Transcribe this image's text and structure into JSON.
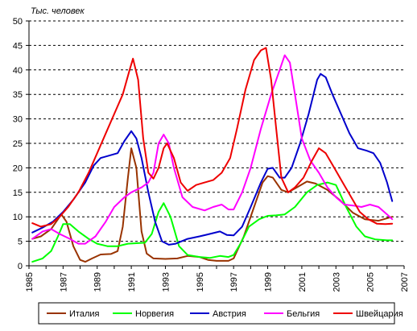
{
  "chart_data": {
    "type": "line",
    "unit_label": "Тыс. человек",
    "ylim": [
      0,
      50
    ],
    "xlim": [
      1985,
      2007
    ],
    "y_ticks": [
      "0",
      "5",
      "10",
      "15",
      "20",
      "25",
      "30",
      "35",
      "40",
      "45",
      "50"
    ],
    "x_ticks": [
      "1985",
      "1987",
      "1989",
      "1991",
      "1993",
      "1995",
      "1997",
      "1999",
      "2001",
      "2003",
      "2005",
      "2007"
    ],
    "grid": "horizontal dashed",
    "legend_position": "bottom",
    "series": [
      {
        "name": "Италия",
        "color": "#993300",
        "points": [
          [
            1985.2,
            5.5
          ],
          [
            1985.7,
            6.0
          ],
          [
            1986.3,
            7.5
          ],
          [
            1986.9,
            10.5
          ],
          [
            1987.2,
            9.0
          ],
          [
            1987.6,
            4.0
          ],
          [
            1988.0,
            1.2
          ],
          [
            1988.3,
            0.8
          ],
          [
            1988.7,
            1.5
          ],
          [
            1989.2,
            2.3
          ],
          [
            1989.8,
            2.4
          ],
          [
            1990.2,
            3.0
          ],
          [
            1990.5,
            8.0
          ],
          [
            1990.8,
            18.0
          ],
          [
            1991.0,
            24.0
          ],
          [
            1991.3,
            20.0
          ],
          [
            1991.6,
            7.0
          ],
          [
            1991.9,
            2.5
          ],
          [
            1992.3,
            1.5
          ],
          [
            1993.0,
            1.4
          ],
          [
            1993.7,
            1.5
          ],
          [
            1994.3,
            2.0
          ],
          [
            1995.0,
            1.8
          ],
          [
            1995.5,
            1.2
          ],
          [
            1996.0,
            1.0
          ],
          [
            1996.7,
            1.0
          ],
          [
            1997.0,
            1.5
          ],
          [
            1997.6,
            6.0
          ],
          [
            1998.2,
            12.0
          ],
          [
            1998.7,
            17.0
          ],
          [
            1999.0,
            18.3
          ],
          [
            1999.3,
            18.0
          ],
          [
            1999.8,
            15.5
          ],
          [
            2000.2,
            15.0
          ],
          [
            2000.7,
            16.0
          ],
          [
            2001.3,
            17.2
          ],
          [
            2001.8,
            16.8
          ],
          [
            2002.5,
            15.5
          ],
          [
            2003.2,
            13.5
          ],
          [
            2004.0,
            10.8
          ],
          [
            2004.7,
            9.5
          ],
          [
            2005.5,
            9.2
          ],
          [
            2006.3,
            10.0
          ]
        ]
      },
      {
        "name": "Норвегия",
        "color": "#00ff00",
        "points": [
          [
            1985.2,
            0.8
          ],
          [
            1985.8,
            1.5
          ],
          [
            1986.3,
            3.0
          ],
          [
            1986.7,
            6.0
          ],
          [
            1987.0,
            8.5
          ],
          [
            1987.4,
            8.5
          ],
          [
            1987.9,
            7.0
          ],
          [
            1988.5,
            5.5
          ],
          [
            1989.0,
            4.5
          ],
          [
            1989.6,
            4.0
          ],
          [
            1990.2,
            4.0
          ],
          [
            1990.8,
            4.5
          ],
          [
            1991.3,
            4.6
          ],
          [
            1991.8,
            4.7
          ],
          [
            1992.2,
            6.5
          ],
          [
            1992.6,
            11.0
          ],
          [
            1992.9,
            12.8
          ],
          [
            1993.3,
            10.0
          ],
          [
            1993.8,
            4.0
          ],
          [
            1994.3,
            2.2
          ],
          [
            1995.0,
            1.8
          ],
          [
            1995.6,
            1.6
          ],
          [
            1996.2,
            2.0
          ],
          [
            1996.7,
            1.8
          ],
          [
            1997.0,
            2.2
          ],
          [
            1997.4,
            4.5
          ],
          [
            1997.9,
            8.0
          ],
          [
            1998.5,
            9.5
          ],
          [
            1999.0,
            10.2
          ],
          [
            1999.5,
            10.3
          ],
          [
            2000.0,
            10.5
          ],
          [
            2000.6,
            12.0
          ],
          [
            2001.3,
            15.0
          ],
          [
            2001.9,
            16.5
          ],
          [
            2002.5,
            17.0
          ],
          [
            2003.0,
            16.5
          ],
          [
            2003.6,
            12.0
          ],
          [
            2004.2,
            8.0
          ],
          [
            2004.7,
            6.0
          ],
          [
            2005.3,
            5.4
          ],
          [
            2006.0,
            5.2
          ],
          [
            2006.3,
            5.2
          ]
        ]
      },
      {
        "name": "Австрия",
        "color": "#0000cc",
        "points": [
          [
            1985.2,
            6.8
          ],
          [
            1985.8,
            7.8
          ],
          [
            1986.4,
            9.0
          ],
          [
            1987.0,
            11.0
          ],
          [
            1987.6,
            13.5
          ],
          [
            1988.3,
            17.0
          ],
          [
            1988.8,
            20.5
          ],
          [
            1989.2,
            22.0
          ],
          [
            1989.7,
            22.5
          ],
          [
            1990.2,
            23.0
          ],
          [
            1990.6,
            25.5
          ],
          [
            1991.0,
            27.5
          ],
          [
            1991.3,
            26.0
          ],
          [
            1991.6,
            22.0
          ],
          [
            1992.0,
            15.0
          ],
          [
            1992.4,
            9.0
          ],
          [
            1992.8,
            5.0
          ],
          [
            1993.2,
            4.3
          ],
          [
            1993.6,
            4.5
          ],
          [
            1994.3,
            5.5
          ],
          [
            1995.0,
            6.0
          ],
          [
            1995.6,
            6.5
          ],
          [
            1996.2,
            7.0
          ],
          [
            1996.6,
            6.3
          ],
          [
            1997.0,
            6.2
          ],
          [
            1997.5,
            8.0
          ],
          [
            1998.0,
            12.0
          ],
          [
            1998.6,
            17.0
          ],
          [
            1999.0,
            19.8
          ],
          [
            1999.3,
            20.0
          ],
          [
            1999.7,
            18.0
          ],
          [
            2000.0,
            18.0
          ],
          [
            2000.4,
            20.0
          ],
          [
            2000.9,
            25.0
          ],
          [
            2001.4,
            31.0
          ],
          [
            2001.9,
            38.0
          ],
          [
            2002.1,
            39.2
          ],
          [
            2002.4,
            38.5
          ],
          [
            2002.8,
            35.0
          ],
          [
            2003.3,
            31.0
          ],
          [
            2003.8,
            27.0
          ],
          [
            2004.3,
            24.0
          ],
          [
            2004.8,
            23.5
          ],
          [
            2005.2,
            23.0
          ],
          [
            2005.6,
            21.0
          ],
          [
            2006.0,
            17.0
          ],
          [
            2006.3,
            13.2
          ]
        ]
      },
      {
        "name": "Бельгия",
        "color": "#ff00ff",
        "points": [
          [
            1985.2,
            5.5
          ],
          [
            1985.8,
            7.0
          ],
          [
            1986.3,
            7.5
          ],
          [
            1986.8,
            6.5
          ],
          [
            1987.4,
            5.5
          ],
          [
            1987.9,
            4.5
          ],
          [
            1988.3,
            4.5
          ],
          [
            1988.9,
            6.0
          ],
          [
            1989.5,
            9.0
          ],
          [
            1990.0,
            12.0
          ],
          [
            1990.6,
            14.0
          ],
          [
            1991.0,
            15.0
          ],
          [
            1991.6,
            16.0
          ],
          [
            1992.0,
            17.0
          ],
          [
            1992.3,
            19.0
          ],
          [
            1992.6,
            25.0
          ],
          [
            1992.9,
            26.8
          ],
          [
            1993.2,
            25.0
          ],
          [
            1993.5,
            20.0
          ],
          [
            1994.0,
            14.0
          ],
          [
            1994.6,
            12.0
          ],
          [
            1995.3,
            11.3
          ],
          [
            1995.8,
            12.0
          ],
          [
            1996.3,
            12.5
          ],
          [
            1996.7,
            11.5
          ],
          [
            1997.0,
            11.5
          ],
          [
            1997.5,
            15.0
          ],
          [
            1998.0,
            20.0
          ],
          [
            1998.6,
            28.0
          ],
          [
            1999.2,
            35.0
          ],
          [
            1999.7,
            40.0
          ],
          [
            2000.0,
            43.0
          ],
          [
            2000.3,
            41.5
          ],
          [
            2000.6,
            35.0
          ],
          [
            2001.0,
            26.0
          ],
          [
            2001.5,
            21.5
          ],
          [
            2002.0,
            19.0
          ],
          [
            2002.5,
            16.0
          ],
          [
            2003.0,
            14.0
          ],
          [
            2003.5,
            12.5
          ],
          [
            2004.0,
            12.3
          ],
          [
            2004.5,
            12.0
          ],
          [
            2005.0,
            12.5
          ],
          [
            2005.5,
            12.0
          ],
          [
            2006.0,
            10.5
          ],
          [
            2006.3,
            9.5
          ]
        ]
      },
      {
        "name": "Швейцария",
        "color": "#ee0000",
        "points": [
          [
            1985.2,
            8.7
          ],
          [
            1985.7,
            8.0
          ],
          [
            1986.3,
            8.5
          ],
          [
            1986.8,
            10.0
          ],
          [
            1987.3,
            12.0
          ],
          [
            1987.9,
            15.0
          ],
          [
            1988.5,
            19.0
          ],
          [
            1989.0,
            23.0
          ],
          [
            1989.5,
            27.0
          ],
          [
            1990.0,
            31.0
          ],
          [
            1990.5,
            35.0
          ],
          [
            1990.9,
            40.0
          ],
          [
            1991.1,
            42.3
          ],
          [
            1991.4,
            38.0
          ],
          [
            1991.7,
            26.0
          ],
          [
            1992.0,
            19.0
          ],
          [
            1992.3,
            17.8
          ],
          [
            1992.6,
            20.0
          ],
          [
            1992.9,
            24.0
          ],
          [
            1993.1,
            25.0
          ],
          [
            1993.5,
            22.0
          ],
          [
            1993.9,
            17.0
          ],
          [
            1994.3,
            15.3
          ],
          [
            1994.8,
            16.5
          ],
          [
            1995.3,
            17.0
          ],
          [
            1995.8,
            17.5
          ],
          [
            1996.3,
            19.0
          ],
          [
            1996.8,
            22.0
          ],
          [
            1997.2,
            28.0
          ],
          [
            1997.7,
            36.0
          ],
          [
            1998.2,
            42.0
          ],
          [
            1998.6,
            44.0
          ],
          [
            1998.9,
            44.5
          ],
          [
            1999.2,
            38.0
          ],
          [
            1999.5,
            28.0
          ],
          [
            1999.8,
            18.0
          ],
          [
            2000.2,
            15.0
          ],
          [
            2000.6,
            16.0
          ],
          [
            2001.1,
            18.0
          ],
          [
            2001.6,
            21.5
          ],
          [
            2002.0,
            24.0
          ],
          [
            2002.4,
            23.0
          ],
          [
            2002.9,
            20.0
          ],
          [
            2003.4,
            17.0
          ],
          [
            2003.9,
            14.0
          ],
          [
            2004.4,
            11.0
          ],
          [
            2004.9,
            9.5
          ],
          [
            2005.4,
            8.6
          ],
          [
            2005.9,
            8.5
          ],
          [
            2006.3,
            8.6
          ]
        ]
      }
    ]
  }
}
